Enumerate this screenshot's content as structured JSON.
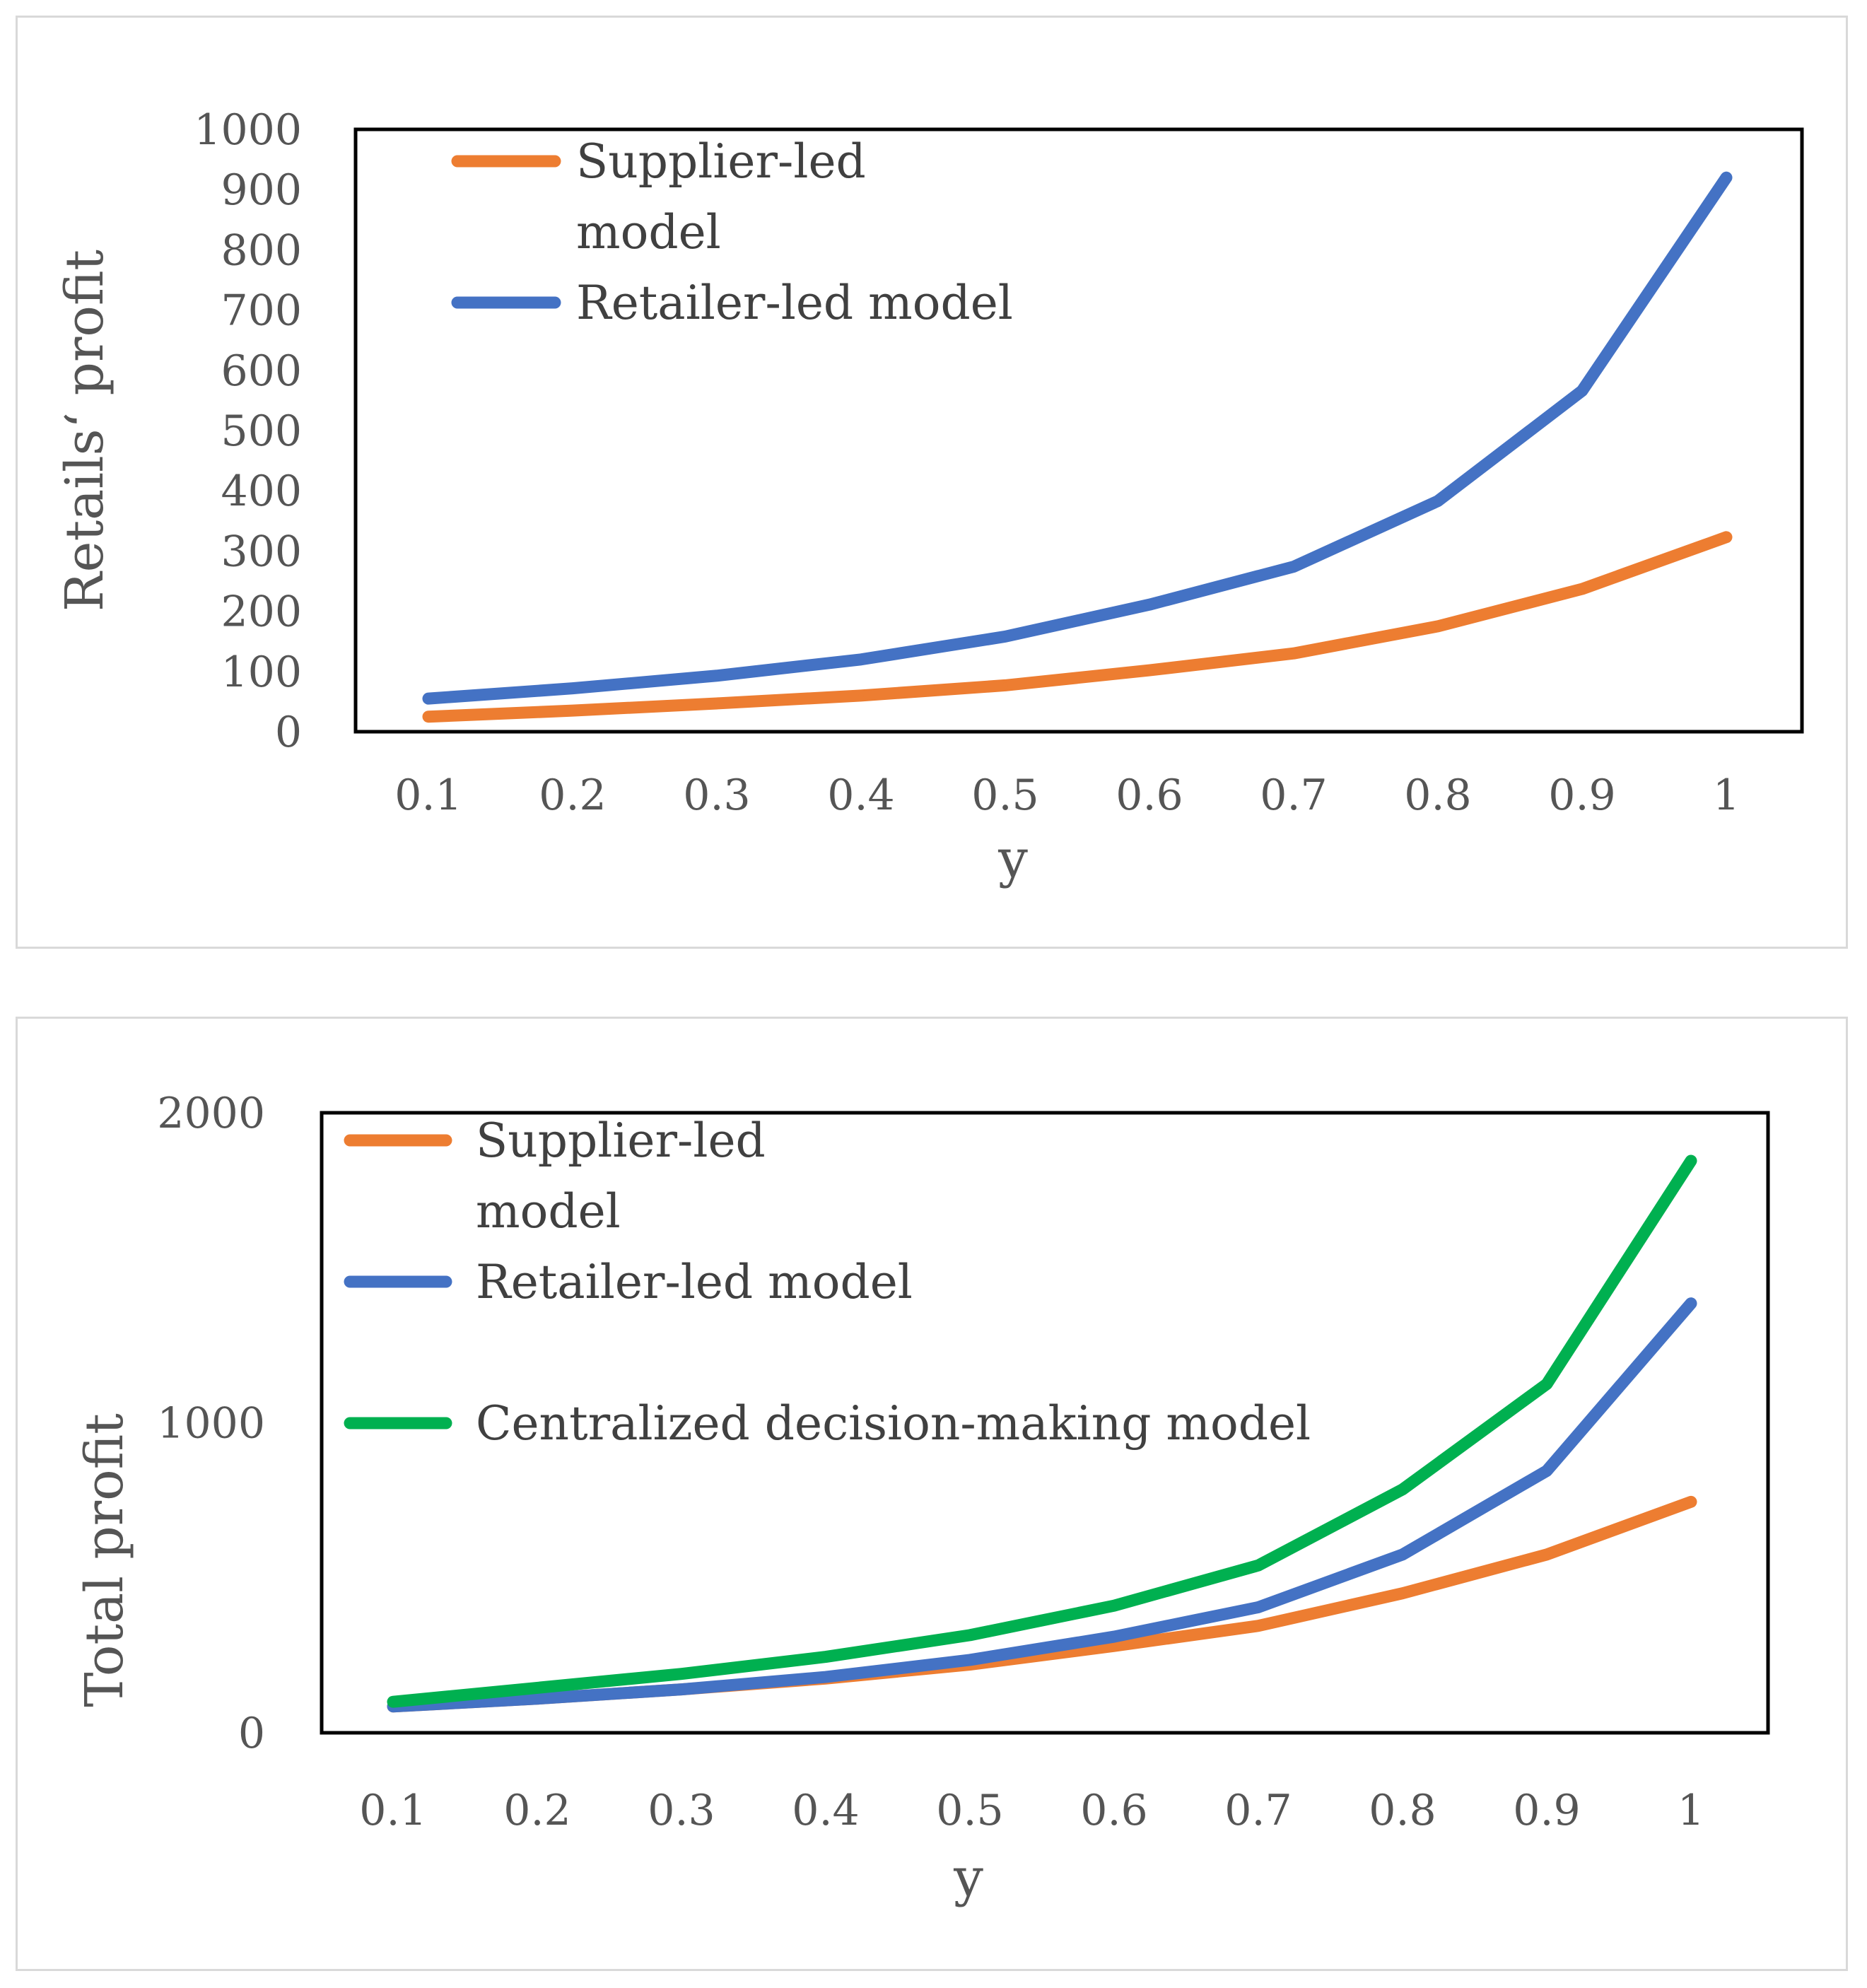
{
  "colors": {
    "supplier": "#ed7d31",
    "retailer": "#4472c4",
    "centralized": "#00b050",
    "frame": "#000000",
    "text": "#555555"
  },
  "chart_data": [
    {
      "type": "line",
      "title": "",
      "xlabel": "y",
      "ylabel": "Retails‘ profit",
      "categories": [
        "0.1",
        "0.2",
        "0.3",
        "0.4",
        "0.5",
        "0.6",
        "0.7",
        "0.8",
        "0.9",
        "1"
      ],
      "ylim": [
        0,
        1000
      ],
      "yticks": [
        0,
        100,
        200,
        300,
        400,
        500,
        600,
        700,
        800,
        900,
        1000
      ],
      "legend_position": "top-left",
      "series": [
        {
          "name": "Supplier-led model",
          "legend_lines": [
            "Supplier-led",
            "model"
          ],
          "color_key": "supplier",
          "values": [
            25,
            35,
            47,
            60,
            77,
            102,
            130,
            175,
            237,
            323
          ]
        },
        {
          "name": "Retailer-led model",
          "legend_lines": [
            "Retailer-led  model"
          ],
          "color_key": "retailer",
          "values": [
            55,
            72,
            93,
            120,
            158,
            211,
            274,
            383,
            566,
            920
          ]
        }
      ]
    },
    {
      "type": "line",
      "title": "",
      "xlabel": "y",
      "ylabel": "Total  profit",
      "categories": [
        "0.1",
        "0.2",
        "0.3",
        "0.4",
        "0.5",
        "0.6",
        "0.7",
        "0.8",
        "0.9",
        "1"
      ],
      "ylim": [
        0,
        2000
      ],
      "yticks": [
        0,
        1000,
        2000
      ],
      "legend_position": "top-left",
      "series": [
        {
          "name": "Supplier-led model",
          "legend_lines": [
            "Supplier-led",
            "model"
          ],
          "color_key": "supplier",
          "values": [
            85,
            110,
            140,
            175,
            220,
            280,
            345,
            450,
            575,
            745
          ]
        },
        {
          "name": "Retailer-led  model",
          "legend_lines": [
            "Retailer-led  model"
          ],
          "color_key": "retailer",
          "values": [
            85,
            110,
            140,
            180,
            235,
            310,
            405,
            575,
            845,
            1385
          ]
        },
        {
          "name": "Centralized decision-making model",
          "legend_lines": [
            "Centralized decision-making model"
          ],
          "color_key": "centralized",
          "values": [
            100,
            145,
            190,
            245,
            315,
            410,
            540,
            785,
            1125,
            1845
          ]
        }
      ]
    }
  ]
}
